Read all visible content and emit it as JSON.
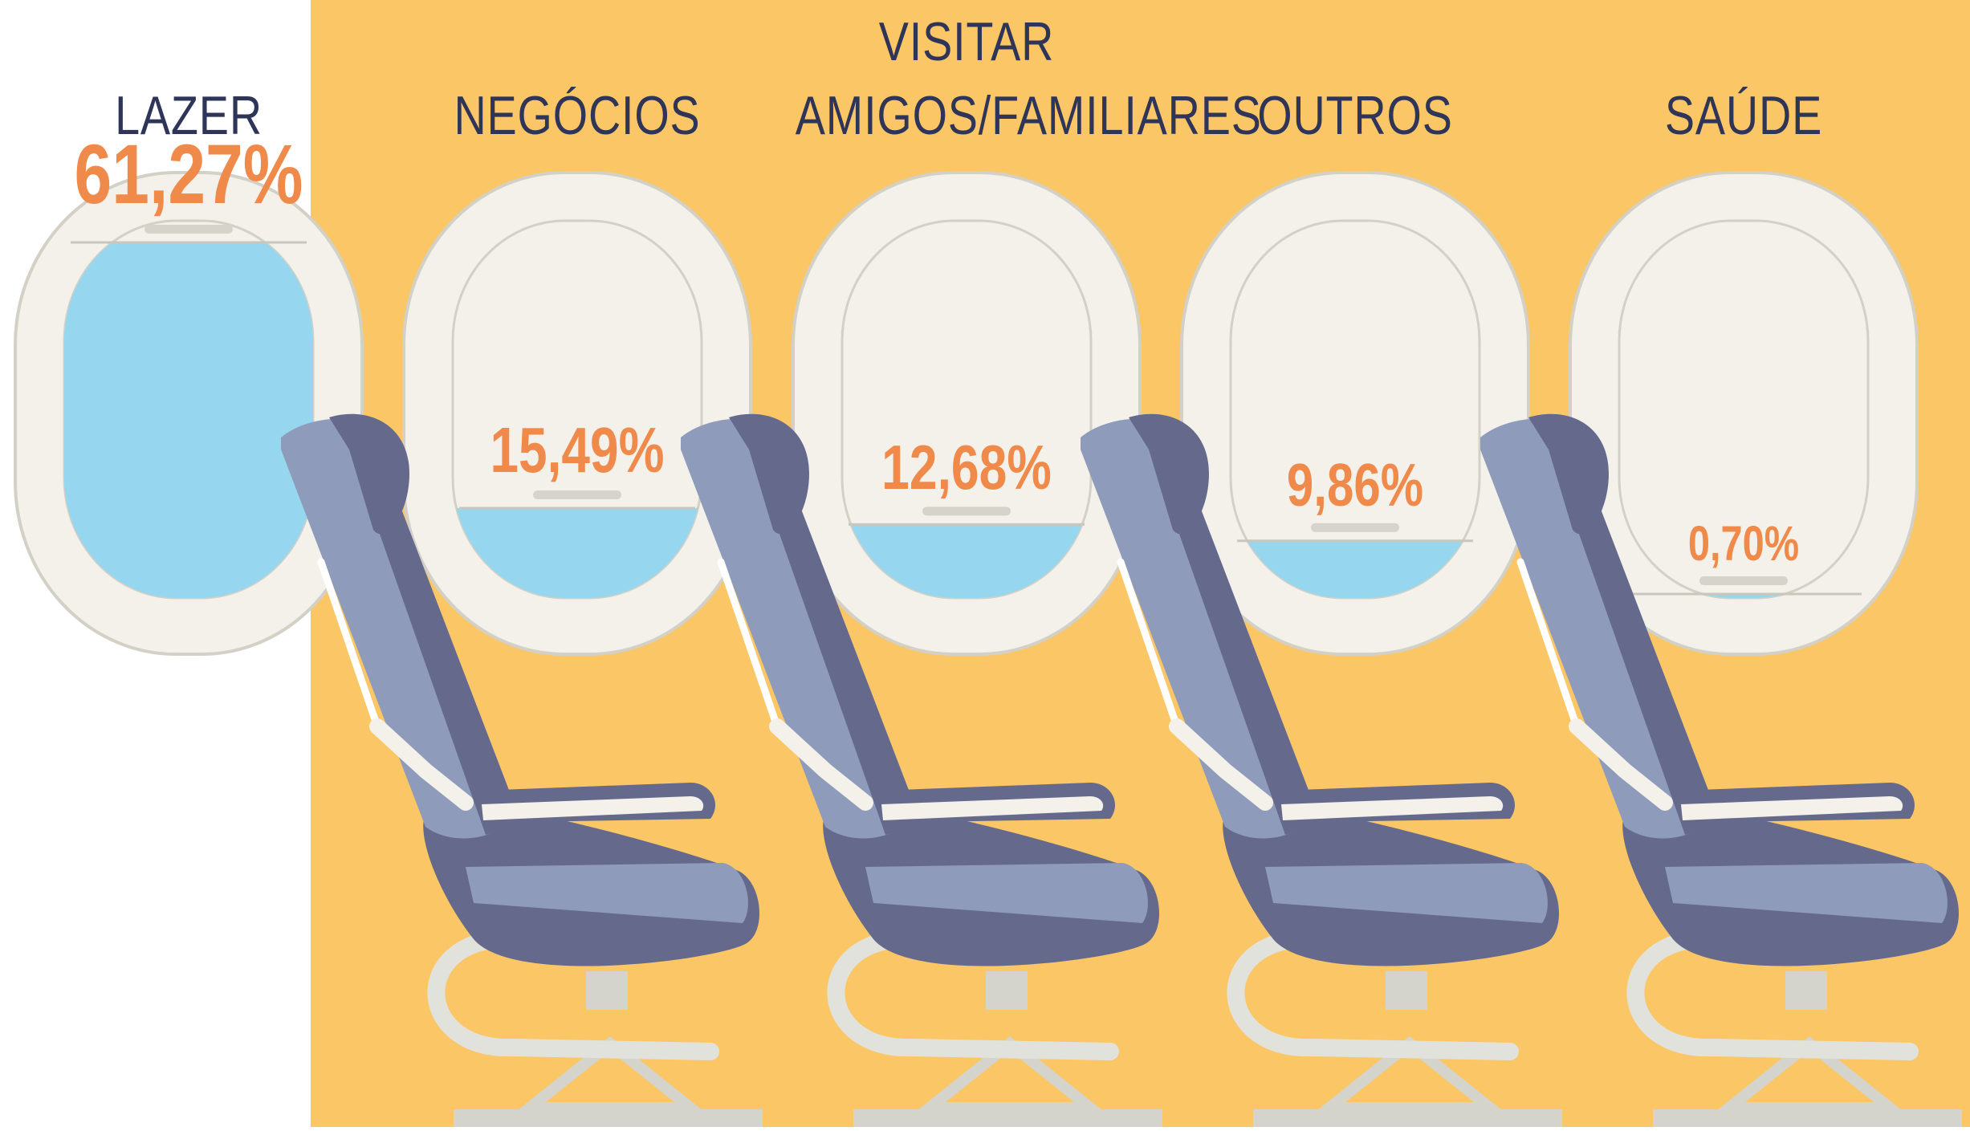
{
  "colors": {
    "background_band": "#fbc665",
    "window_frame": "#f3f1ea",
    "window_stroke": "#d3d0c6",
    "sky": "#96d7ef",
    "label_text": "#2e3558",
    "value_text": "#f08a4b",
    "seat_light": "#8f9bbb",
    "seat_dark": "#656a8c",
    "seat_frame": "#e2e2dc"
  },
  "chart_data": {
    "type": "bar",
    "title": "",
    "xlabel": "",
    "ylabel": "",
    "ylim": [
      0,
      65
    ],
    "categories": [
      [
        "LAZER"
      ],
      [
        "NEGÓCIOS"
      ],
      [
        "VISITAR",
        "AMIGOS/FAMILIARES"
      ],
      [
        "OUTROS"
      ],
      [
        "SAÚDE"
      ]
    ],
    "values": [
      61.27,
      15.49,
      12.68,
      9.86,
      0.7
    ],
    "value_labels": [
      "61,27%",
      "15,49%",
      "12,68%",
      "9,86%",
      "0,70%"
    ]
  }
}
